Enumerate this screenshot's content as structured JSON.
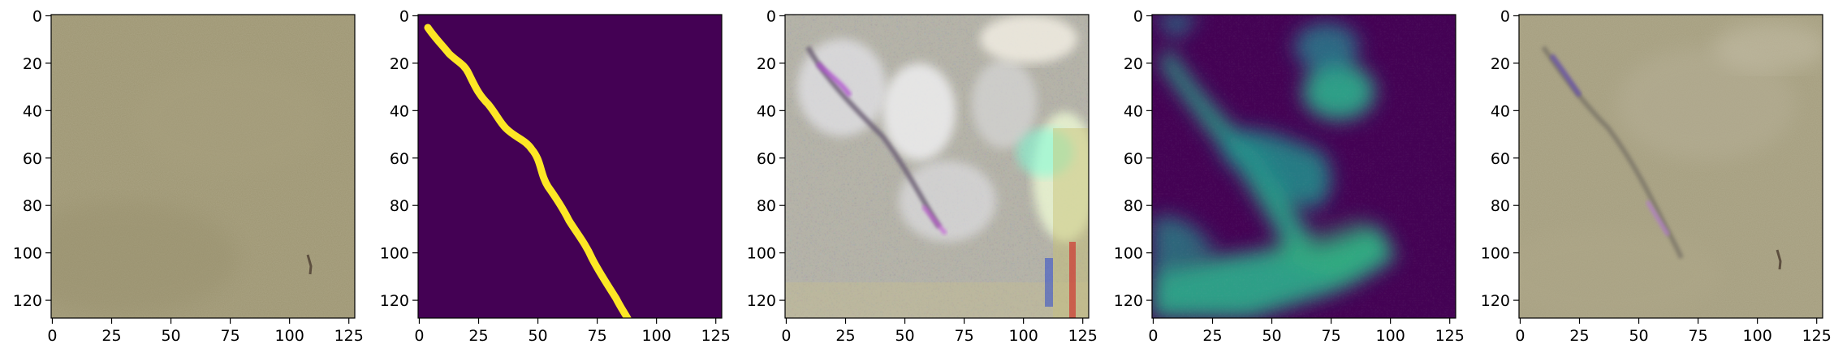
{
  "figure": {
    "panel_count": 5,
    "image_size": 128,
    "x_ticks": [
      "0",
      "25",
      "50",
      "75",
      "100",
      "125"
    ],
    "y_ticks": [
      "0",
      "20",
      "40",
      "60",
      "80",
      "100",
      "120"
    ],
    "panels": [
      {
        "content": "input-satellite-patch",
        "colormap": "rgb"
      },
      {
        "content": "ground-truth-mask",
        "colormap": "viridis",
        "mask_color": "#fde725",
        "background_color": "#440154"
      },
      {
        "content": "reconstruction-artifacts",
        "colormap": "rgb"
      },
      {
        "content": "predicted-heatmap",
        "colormap": "viridis",
        "background_color": "#440154",
        "high_color": "#2aa889"
      },
      {
        "content": "overlay-result",
        "colormap": "rgb"
      }
    ]
  }
}
